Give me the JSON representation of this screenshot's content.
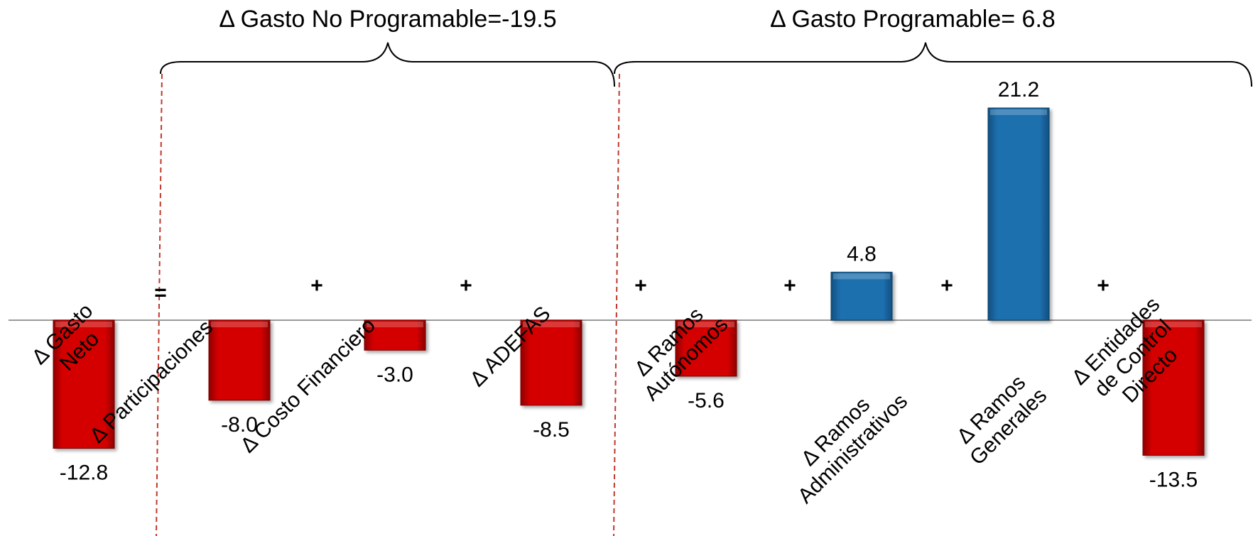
{
  "chart_data": {
    "type": "bar",
    "categories": [
      [
        "Δ Gasto",
        "Neto"
      ],
      [
        "Δ Participaciones"
      ],
      [
        "Δ Costo Financiero"
      ],
      [
        "Δ ADEFAS"
      ],
      [
        "Δ Ramos",
        "Autónomos"
      ],
      [
        "Δ Ramos",
        "Administrativos"
      ],
      [
        "Δ Ramos",
        "Generales"
      ],
      [
        "Δ Entidades",
        "de Control",
        "Directo"
      ]
    ],
    "values": [
      -12.8,
      -8.0,
      -3.0,
      -8.5,
      -5.6,
      4.8,
      21.2,
      -13.5
    ],
    "value_labels": [
      "-12.8",
      "-8.0",
      "-3.0",
      "-8.5",
      "-5.6",
      "4.8",
      "21.2",
      "-13.5"
    ],
    "operators": [
      "=",
      "+",
      "+",
      "+",
      "+",
      "+",
      "+"
    ],
    "groups": [
      {
        "label": "Δ Gasto No Programable=-19.5",
        "from": 1,
        "to": 3
      },
      {
        "label": "Δ Gasto Programable= 6.8",
        "from": 4,
        "to": 7
      }
    ],
    "colors": {
      "negative": "#d40000",
      "positive": "#1f6fae",
      "axis": "#999999",
      "divider": "#c0392b"
    },
    "title": "",
    "xlabel": "",
    "ylabel": ""
  }
}
